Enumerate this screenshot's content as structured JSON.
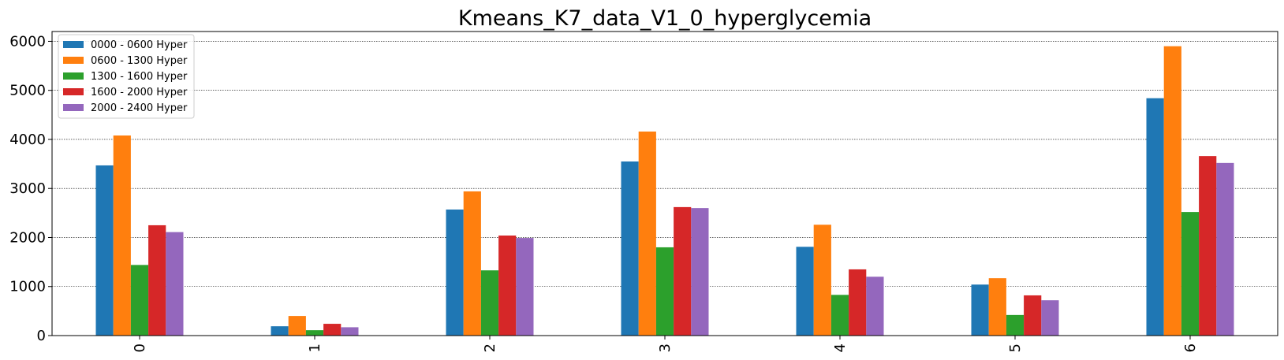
{
  "chart_data": {
    "type": "bar",
    "title": "Kmeans_K7_data_V1_0_hyperglycemia",
    "xlabel": "",
    "ylabel": "",
    "categories": [
      "0",
      "1",
      "2",
      "3",
      "4",
      "5",
      "6"
    ],
    "series": [
      {
        "name": "0000 - 0600 Hyper",
        "color": "#1f77b4",
        "values": [
          3470,
          190,
          2570,
          3550,
          1810,
          1040,
          4840
        ]
      },
      {
        "name": "0600 - 1300 Hyper",
        "color": "#ff7f0e",
        "values": [
          4080,
          400,
          2940,
          4160,
          2260,
          1170,
          5900
        ]
      },
      {
        "name": "1300 - 1600 Hyper",
        "color": "#2ca02c",
        "values": [
          1440,
          110,
          1330,
          1800,
          830,
          420,
          2520
        ]
      },
      {
        "name": "1600 - 2000 Hyper",
        "color": "#d62728",
        "values": [
          2250,
          240,
          2040,
          2620,
          1350,
          820,
          3660
        ]
      },
      {
        "name": "2000 - 2400 Hyper",
        "color": "#9467bd",
        "values": [
          2110,
          170,
          1990,
          2600,
          1200,
          720,
          3520
        ]
      }
    ],
    "ylim": [
      0,
      6200
    ],
    "yticks": [
      "0",
      "1000",
      "2000",
      "3000",
      "4000",
      "5000",
      "6000"
    ],
    "grid": true,
    "legend": "top-left"
  }
}
